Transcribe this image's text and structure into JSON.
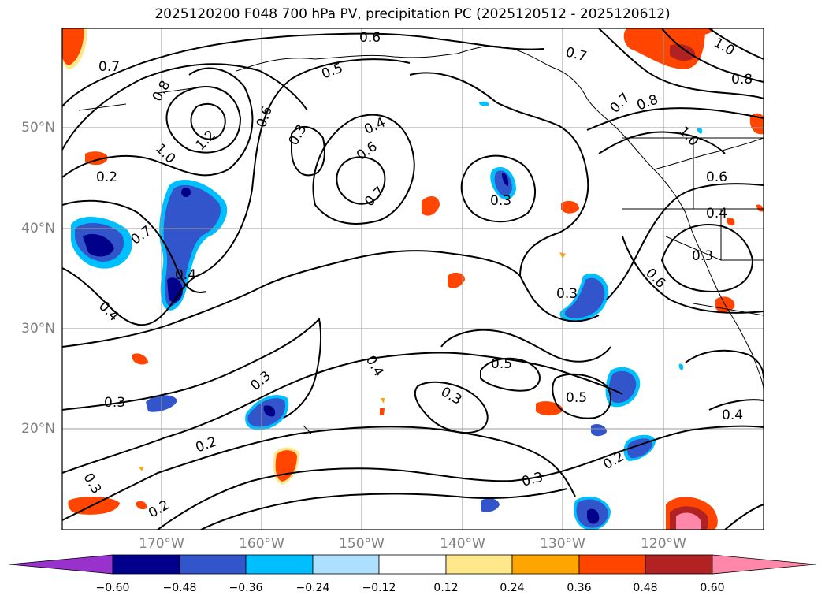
{
  "title": "2025120200 F048 700 hPa PV, precipitation PC (2025120512 - 2025120612)",
  "lat_labels": [
    "50°N",
    "40°N",
    "30°N",
    "20°N"
  ],
  "lon_labels": [
    "170°W",
    "160°W",
    "150°W",
    "140°W",
    "130°W",
    "120°W"
  ],
  "contour_labels": [
    "0.6",
    "0.7",
    "0.8",
    "1.0",
    "1.2",
    "0.5",
    "0.6",
    "0.3",
    "0.4",
    "0.6",
    "0.7",
    "0.3",
    "0.7",
    "0.8",
    "1.0",
    "0.8",
    "0.7",
    "0.6",
    "0.4",
    "0.3",
    "0.6",
    "1.0",
    "0.7",
    "0.4",
    "0.4",
    "0.3",
    "0.3",
    "0.4",
    "0.5",
    "0.3",
    "0.5",
    "0.3",
    "0.2",
    "0.2",
    "0.3",
    "0.2",
    "0.3",
    "0.4",
    "0.2"
  ],
  "colorbar": {
    "ticks": [
      "−0.60",
      "−0.48",
      "−0.36",
      "−0.24",
      "−0.12",
      "0.12",
      "0.24",
      "0.36",
      "0.48",
      "0.60"
    ],
    "colors": [
      "#9932CC",
      "#00008B",
      "#3355CC",
      "#00BFFF",
      "#ADDFFF",
      "#FFFFFF",
      "#FFE88C",
      "#FFA500",
      "#FF4500",
      "#B22222",
      "#FF88AA",
      "#FF88AA"
    ]
  },
  "precip_colors": {
    "dark_blue": "#00008B",
    "mid_blue": "#3355CC",
    "light_blue": "#00BFFF",
    "orange_red": "#FF4500",
    "dark_red": "#B22222",
    "pink": "#FF88AA",
    "yellow": "#FFE88C",
    "orange": "#FFA500"
  }
}
